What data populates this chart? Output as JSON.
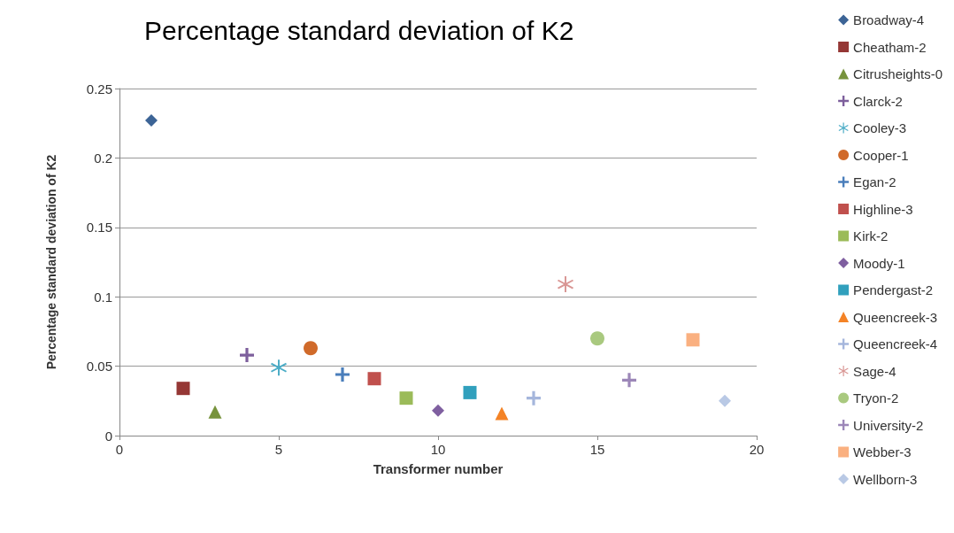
{
  "chart_data": {
    "type": "scatter",
    "title": "Percentage standard deviation of K2",
    "xlabel": "Transformer number",
    "ylabel": "Percentage standard deviation of K2",
    "xlim": [
      0,
      20
    ],
    "xticks": [
      0,
      5,
      10,
      15,
      20
    ],
    "ylim": [
      0,
      0.25
    ],
    "yticks": [
      0,
      0.05,
      0.1,
      0.15,
      0.2,
      0.25
    ],
    "grid": "y",
    "legend": "right",
    "series": [
      {
        "name": "Broadway-4",
        "color": "#3c6496",
        "marker": "diamond",
        "x": [
          1
        ],
        "values": [
          0.227
        ]
      },
      {
        "name": "Cheatham-2",
        "color": "#953735",
        "marker": "square",
        "x": [
          2
        ],
        "values": [
          0.034
        ]
      },
      {
        "name": "Citrusheights-0",
        "color": "#77933c",
        "marker": "triangle",
        "x": [
          3
        ],
        "values": [
          0.017
        ]
      },
      {
        "name": "Clarck-2",
        "color": "#7d5f9c",
        "marker": "cross",
        "x": [
          4
        ],
        "values": [
          0.058
        ]
      },
      {
        "name": "Cooley-3",
        "color": "#4bacc6",
        "marker": "star",
        "x": [
          5
        ],
        "values": [
          0.049
        ]
      },
      {
        "name": "Cooper-1",
        "color": "#d06a2a",
        "marker": "circle",
        "x": [
          6
        ],
        "values": [
          0.063
        ]
      },
      {
        "name": "Egan-2",
        "color": "#4a7ebb",
        "marker": "cross",
        "x": [
          7
        ],
        "values": [
          0.044
        ]
      },
      {
        "name": "Highline-3",
        "color": "#c0504d",
        "marker": "square",
        "x": [
          8
        ],
        "values": [
          0.041
        ]
      },
      {
        "name": "Kirk-2",
        "color": "#9bbb59",
        "marker": "square",
        "x": [
          9
        ],
        "values": [
          0.027
        ]
      },
      {
        "name": "Moody-1",
        "color": "#7f5fa0",
        "marker": "diamond",
        "x": [
          10
        ],
        "values": [
          0.018
        ]
      },
      {
        "name": "Pendergast-2",
        "color": "#31a0bd",
        "marker": "square",
        "x": [
          11
        ],
        "values": [
          0.031
        ]
      },
      {
        "name": "Queencreek-3",
        "color": "#f48326",
        "marker": "triangle",
        "x": [
          12
        ],
        "values": [
          0.016
        ]
      },
      {
        "name": "Queencreek-4",
        "color": "#a5b6dc",
        "marker": "cross",
        "x": [
          13
        ],
        "values": [
          0.027
        ]
      },
      {
        "name": "Sage-4",
        "color": "#d99694",
        "marker": "star",
        "x": [
          14
        ],
        "values": [
          0.109
        ]
      },
      {
        "name": "Tryon-2",
        "color": "#a9c97f",
        "marker": "circle",
        "x": [
          15
        ],
        "values": [
          0.07
        ]
      },
      {
        "name": "University-2",
        "color": "#9c87b8",
        "marker": "cross",
        "x": [
          16
        ],
        "values": [
          0.04
        ]
      },
      {
        "name": "Webber-3",
        "color": "#fab080",
        "marker": "square",
        "x": [
          18
        ],
        "values": [
          0.069
        ]
      },
      {
        "name": "Wellborn-3",
        "color": "#b9c9e5",
        "marker": "diamond",
        "x": [
          19
        ],
        "values": [
          0.025
        ]
      }
    ]
  }
}
